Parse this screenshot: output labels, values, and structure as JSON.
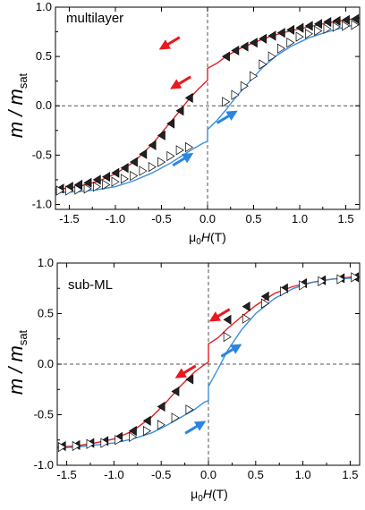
{
  "chart_data": [
    {
      "type": "line",
      "panel_label": "multilayer",
      "ylabel_main": "m / m",
      "ylabel_sub": "sat",
      "xlabel_prefix": "μ",
      "xlabel_sub": "0",
      "xlabel_var": "H",
      "xlabel_unit": "(T)",
      "xlim": [
        -1.65,
        1.65
      ],
      "ylim": [
        -1.05,
        1.0
      ],
      "xticks": [
        -1.5,
        -1.0,
        -0.5,
        0.0,
        0.5,
        1.0,
        1.5
      ],
      "xtick_labels": [
        "-1.5",
        "-1.0",
        "-0.5",
        "0.0",
        "0.5",
        "1.0",
        "1.5"
      ],
      "yticks": [
        -1.0,
        -0.5,
        0.0,
        0.5,
        1.0
      ],
      "ytick_labels": [
        "-1.0",
        "-0.5",
        "0.0",
        "0.5",
        "1.0"
      ],
      "colors": {
        "descending": "#e02020",
        "ascending": "#3a8fe0",
        "arrow_red": "#e8191f",
        "arrow_blue": "#2a85e0"
      },
      "series": [
        {
          "x": [
            -1.65,
            -1.4,
            -1.2,
            -1.0,
            -0.8,
            -0.6,
            -0.45,
            -0.3,
            -0.2,
            -0.1,
            -0.02,
            0.0,
            0.0,
            0.1,
            0.2,
            0.35,
            0.5,
            0.7,
            0.9,
            1.1,
            1.3,
            1.5,
            1.65
          ],
          "y": [
            -0.85,
            -0.82,
            -0.77,
            -0.69,
            -0.57,
            -0.39,
            -0.22,
            -0.05,
            0.07,
            0.17,
            0.24,
            0.26,
            0.38,
            0.43,
            0.5,
            0.58,
            0.64,
            0.71,
            0.76,
            0.8,
            0.84,
            0.87,
            0.89
          ]
        },
        {
          "x": [
            -1.65,
            -1.4,
            -1.2,
            -1.0,
            -0.8,
            -0.6,
            -0.4,
            -0.2,
            -0.05,
            0.0,
            0.0,
            0.1,
            0.2,
            0.3,
            0.45,
            0.6,
            0.75,
            0.9,
            1.1,
            1.3,
            1.5,
            1.65
          ],
          "y": [
            -0.88,
            -0.87,
            -0.85,
            -0.82,
            -0.76,
            -0.68,
            -0.58,
            -0.46,
            -0.38,
            -0.36,
            -0.24,
            -0.15,
            -0.04,
            0.08,
            0.24,
            0.39,
            0.51,
            0.6,
            0.69,
            0.75,
            0.8,
            0.83
          ]
        },
        {
          "x": [
            -1.6,
            -1.5,
            -1.4,
            -1.3,
            -1.2,
            -1.1,
            -1.0,
            -0.9,
            -0.8,
            -0.7,
            -0.6,
            -0.5,
            -0.4,
            -0.3,
            -0.2,
            0.2,
            0.3,
            0.4,
            0.5,
            0.6,
            0.7,
            0.8,
            0.9,
            1.0,
            1.1,
            1.2,
            1.3,
            1.4,
            1.5,
            1.6
          ],
          "y": [
            -0.84,
            -0.82,
            -0.8,
            -0.78,
            -0.75,
            -0.72,
            -0.68,
            -0.63,
            -0.57,
            -0.49,
            -0.4,
            -0.3,
            -0.18,
            -0.05,
            0.08,
            0.5,
            0.56,
            0.6,
            0.64,
            0.68,
            0.71,
            0.74,
            0.77,
            0.79,
            0.81,
            0.83,
            0.85,
            0.86,
            0.87,
            0.88
          ]
        },
        {
          "x": [
            -1.6,
            -1.5,
            -1.4,
            -1.3,
            -1.2,
            -1.1,
            -1.0,
            -0.9,
            -0.8,
            -0.7,
            -0.6,
            -0.5,
            -0.4,
            -0.3,
            -0.2,
            0.2,
            0.3,
            0.4,
            0.5,
            0.6,
            0.7,
            0.8,
            0.9,
            1.0,
            1.1,
            1.2,
            1.3,
            1.4,
            1.5,
            1.6
          ],
          "y": [
            -0.86,
            -0.86,
            -0.85,
            -0.84,
            -0.82,
            -0.8,
            -0.77,
            -0.74,
            -0.71,
            -0.66,
            -0.62,
            -0.57,
            -0.51,
            -0.45,
            -0.42,
            0.04,
            0.11,
            0.2,
            0.3,
            0.42,
            0.5,
            0.58,
            0.64,
            0.7,
            0.73,
            0.76,
            0.78,
            0.8,
            0.81,
            0.82
          ]
        }
      ],
      "arrows": [
        {
          "x": -0.4,
          "y": 0.64,
          "dir": "down-left",
          "color": "red"
        },
        {
          "x": -0.28,
          "y": 0.24,
          "dir": "down-left",
          "color": "red"
        },
        {
          "x": 0.2,
          "y": -0.12,
          "dir": "up-right",
          "color": "blue"
        },
        {
          "x": -0.28,
          "y": -0.55,
          "dir": "up-right",
          "color": "blue"
        }
      ]
    },
    {
      "type": "line",
      "panel_label": "sub-ML",
      "ylabel_main": "m / m",
      "ylabel_sub": "sat",
      "xlabel_prefix": "μ",
      "xlabel_sub": "0",
      "xlabel_var": "H",
      "xlabel_unit": "(T)",
      "xlim": [
        -1.6,
        1.6
      ],
      "ylim": [
        -1.0,
        1.0
      ],
      "xticks": [
        -1.5,
        -1.0,
        -0.5,
        0.0,
        0.5,
        1.0,
        1.5
      ],
      "xtick_labels": [
        "-1.5",
        "-1.0",
        "-0.5",
        "0.0",
        "0.5",
        "1.0",
        "1.5"
      ],
      "yticks": [
        -1.0,
        -0.5,
        0.0,
        0.5,
        1.0
      ],
      "ytick_labels": [
        "-1.0",
        "-0.5",
        "0.0",
        "0.5",
        "1.0"
      ],
      "colors": {
        "descending": "#e02020",
        "ascending": "#3a8fe0",
        "arrow_red": "#e8191f",
        "arrow_blue": "#2a85e0"
      },
      "series": [
        {
          "x": [
            -1.6,
            -1.4,
            -1.2,
            -1.0,
            -0.8,
            -0.6,
            -0.45,
            -0.3,
            -0.15,
            -0.05,
            0.0,
            0.0,
            0.1,
            0.2,
            0.35,
            0.5,
            0.7,
            0.9,
            1.1,
            1.3,
            1.5,
            1.6
          ],
          "y": [
            -0.82,
            -0.81,
            -0.78,
            -0.74,
            -0.66,
            -0.52,
            -0.38,
            -0.22,
            -0.08,
            -0.01,
            0.02,
            0.2,
            0.26,
            0.35,
            0.47,
            0.58,
            0.7,
            0.77,
            0.81,
            0.84,
            0.86,
            0.86
          ]
        },
        {
          "x": [
            -1.6,
            -1.4,
            -1.2,
            -1.0,
            -0.8,
            -0.6,
            -0.45,
            -0.3,
            -0.15,
            -0.05,
            0.0,
            0.0,
            0.1,
            0.2,
            0.35,
            0.5,
            0.7,
            0.9,
            1.1,
            1.3,
            1.5,
            1.6
          ],
          "y": [
            -0.83,
            -0.82,
            -0.8,
            -0.78,
            -0.74,
            -0.68,
            -0.61,
            -0.53,
            -0.45,
            -0.38,
            -0.36,
            -0.22,
            -0.05,
            0.13,
            0.34,
            0.5,
            0.65,
            0.75,
            0.81,
            0.84,
            0.85,
            0.86
          ]
        },
        {
          "x": [
            -1.55,
            -1.4,
            -1.25,
            -1.1,
            -0.95,
            -0.8,
            -0.65,
            -0.5,
            -0.35,
            -0.2,
            0.2,
            0.4,
            0.6,
            0.8,
            1.0,
            1.2,
            1.4,
            1.55
          ],
          "y": [
            -0.81,
            -0.8,
            -0.78,
            -0.76,
            -0.72,
            -0.66,
            -0.56,
            -0.42,
            -0.27,
            -0.15,
            0.44,
            0.57,
            0.67,
            0.75,
            0.8,
            0.83,
            0.85,
            0.86
          ]
        },
        {
          "x": [
            -1.55,
            -1.4,
            -1.25,
            -1.1,
            -0.95,
            -0.8,
            -0.65,
            -0.5,
            -0.35,
            -0.2,
            0.2,
            0.4,
            0.6,
            0.8,
            1.0,
            1.2,
            1.4,
            1.55
          ],
          "y": [
            -0.82,
            -0.81,
            -0.79,
            -0.78,
            -0.75,
            -0.72,
            -0.66,
            -0.6,
            -0.53,
            -0.45,
            0.27,
            0.45,
            0.6,
            0.72,
            0.78,
            0.82,
            0.84,
            0.86
          ]
        }
      ],
      "arrows": [
        {
          "x": 0.13,
          "y": 0.49,
          "dir": "down-left",
          "color": "red"
        },
        {
          "x": -0.23,
          "y": -0.07,
          "dir": "down-left",
          "color": "red"
        },
        {
          "x": 0.23,
          "y": 0.13,
          "dir": "up-right",
          "color": "blue"
        },
        {
          "x": -0.15,
          "y": -0.63,
          "dir": "up-right",
          "color": "blue"
        }
      ]
    }
  ]
}
